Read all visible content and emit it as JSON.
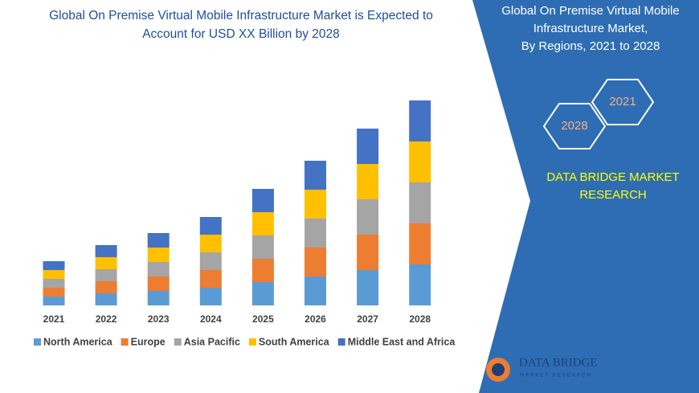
{
  "chart_data": {
    "type": "bar",
    "stacked": true,
    "title_lines": [
      "Global On Premise Virtual Mobile Infrastructure Market is Expected to",
      "Account for USD XX Billion by 2028"
    ],
    "categories": [
      "2021",
      "2022",
      "2023",
      "2024",
      "2025",
      "2026",
      "2027",
      "2028"
    ],
    "series": [
      {
        "name": "North America",
        "color": "#5b9bd5",
        "values": [
          11,
          15,
          18,
          22,
          29,
          36,
          44,
          51
        ]
      },
      {
        "name": "Europe",
        "color": "#ed7d31",
        "values": [
          11,
          15,
          18,
          22,
          29,
          36,
          44,
          51
        ]
      },
      {
        "name": "Asia Pacific",
        "color": "#a5a5a5",
        "values": [
          11,
          15,
          18,
          22,
          29,
          36,
          44,
          51
        ]
      },
      {
        "name": "South America",
        "color": "#ffc000",
        "values": [
          11,
          15,
          18,
          22,
          29,
          36,
          44,
          51
        ]
      },
      {
        "name": "Middle East and Africa",
        "color": "#4472c4",
        "values": [
          11,
          15,
          18,
          22,
          29,
          36,
          44,
          51
        ]
      }
    ],
    "legend": "bottom"
  },
  "panel": {
    "title_lines": [
      "Global On Premise Virtual Mobile",
      "Infrastructure Market,",
      "By Regions, 2021 to 2028"
    ],
    "hexagons": [
      "2021",
      "2028"
    ],
    "brand_lines": [
      "DATA BRIDGE MARKET",
      "RESEARCH"
    ]
  },
  "logo": {
    "name": "DATA BRIDGE",
    "tagline": "MARKET RESEARCH"
  }
}
